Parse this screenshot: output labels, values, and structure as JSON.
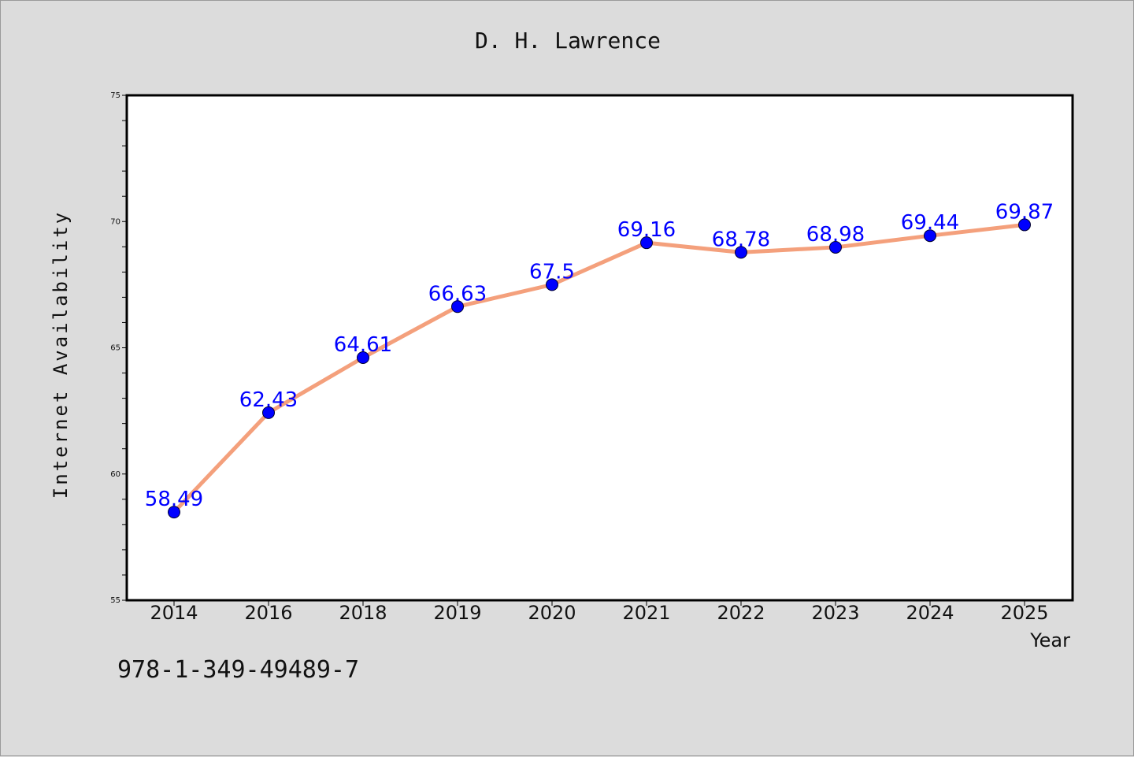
{
  "chart_data": {
    "type": "line",
    "title": "D. H. Lawrence",
    "xlabel": "Year",
    "ylabel": "Internet Availability",
    "categories": [
      "2014",
      "2016",
      "2018",
      "2019",
      "2020",
      "2021",
      "2022",
      "2023",
      "2024",
      "2025"
    ],
    "values": [
      58.49,
      62.43,
      64.61,
      66.63,
      67.5,
      69.16,
      68.78,
      68.98,
      69.44,
      69.87
    ],
    "data_labels": [
      "58.49",
      "62.43",
      "64.61",
      "66.63",
      "67.5",
      "69.16",
      "68.78",
      "68.98",
      "69.44",
      "69.87"
    ],
    "ylim": [
      55,
      75
    ],
    "yticks": [
      55,
      60,
      65,
      70,
      75
    ],
    "grid": false,
    "legend": "none",
    "colors": {
      "line": "#f4a07c",
      "marker": "#0000ff",
      "label": "#0000ff",
      "background": "#dcdcdc",
      "plot_background": "#ffffff"
    }
  },
  "caption": "978-1-349-49489-7"
}
